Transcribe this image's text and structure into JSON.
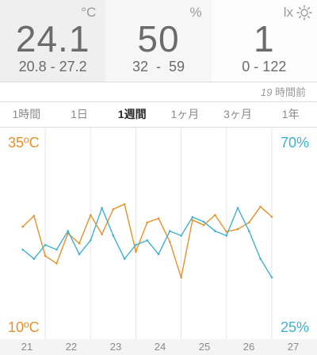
{
  "sensors": {
    "temperature": {
      "unit": "°C",
      "value": "24.1",
      "range": "20.8 - 27.2"
    },
    "humidity": {
      "unit": "%",
      "value": "50",
      "range": "32  -  59"
    },
    "light": {
      "unit": "lx",
      "value": "1",
      "range": "0 - 122",
      "icon": "sun-icon"
    }
  },
  "updated": {
    "number": "19",
    "suffix": " 時間前"
  },
  "tabs": [
    {
      "label": "1時間",
      "active": false
    },
    {
      "label": "1日",
      "active": false
    },
    {
      "label": "1週間",
      "active": true
    },
    {
      "label": "1ヶ月",
      "active": false
    },
    {
      "label": "3ヶ月",
      "active": false
    },
    {
      "label": "1年",
      "active": false
    }
  ],
  "chart": {
    "temp_max_label": "35ºC",
    "temp_min_label": "10ºC",
    "hum_max_label": "70%",
    "hum_min_label": "25%",
    "day_labels": [
      "21",
      "22",
      "23",
      "24",
      "25",
      "26",
      "27"
    ]
  },
  "chart_data": {
    "type": "line",
    "x": [
      21,
      21.25,
      21.5,
      21.75,
      22,
      22.25,
      22.5,
      22.75,
      23,
      23.25,
      23.5,
      23.75,
      24,
      24.25,
      24.5,
      24.75,
      25,
      25.25,
      25.5,
      25.75,
      26,
      26.25,
      26.5
    ],
    "series": [
      {
        "axis": "temperature (ºC)",
        "color": "#e8912a",
        "values": [
          23.3,
          24.6,
          19.8,
          18.9,
          22.5,
          21.3,
          24.7,
          22.4,
          25.4,
          26.0,
          20.3,
          23.8,
          24.3,
          21.5,
          17.2,
          24.1,
          23.5,
          24.7,
          22.7,
          23.0,
          23.8,
          25.7,
          24.5
        ]
      },
      {
        "axis": "humidity (%)",
        "color": "#3fb2cf",
        "values": [
          44,
          42,
          45,
          44,
          48,
          43,
          46,
          53,
          47,
          42,
          45,
          46,
          43,
          48,
          47,
          51,
          50,
          48,
          47,
          53,
          48,
          42,
          38
        ]
      }
    ],
    "ylim_left": [
      10,
      35
    ],
    "ylim_right": [
      25,
      70
    ],
    "xlim": [
      20.5,
      27.5
    ],
    "grid": true
  }
}
